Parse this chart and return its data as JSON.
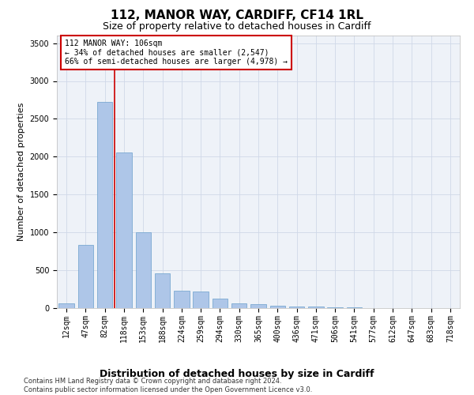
{
  "title1": "112, MANOR WAY, CARDIFF, CF14 1RL",
  "title2": "Size of property relative to detached houses in Cardiff",
  "xlabel": "Distribution of detached houses by size in Cardiff",
  "ylabel": "Number of detached properties",
  "categories": [
    "12sqm",
    "47sqm",
    "82sqm",
    "118sqm",
    "153sqm",
    "188sqm",
    "224sqm",
    "259sqm",
    "294sqm",
    "330sqm",
    "365sqm",
    "400sqm",
    "436sqm",
    "471sqm",
    "506sqm",
    "541sqm",
    "577sqm",
    "612sqm",
    "647sqm",
    "683sqm",
    "718sqm"
  ],
  "values": [
    65,
    840,
    2720,
    2060,
    1000,
    455,
    225,
    220,
    130,
    60,
    50,
    35,
    25,
    20,
    10,
    8,
    5,
    5,
    3,
    2,
    2
  ],
  "bar_color": "#aec6e8",
  "bar_edge_color": "#6aa0cc",
  "grid_color": "#d0d8e8",
  "bg_color": "#eef2f8",
  "vline_color": "#cc0000",
  "vline_x_idx": 2.5,
  "annotation_text": "112 MANOR WAY: 106sqm\n← 34% of detached houses are smaller (2,547)\n66% of semi-detached houses are larger (4,978) →",
  "annotation_box_color": "#cc0000",
  "ylim": [
    0,
    3600
  ],
  "yticks": [
    0,
    500,
    1000,
    1500,
    2000,
    2500,
    3000,
    3500
  ],
  "footnote": "Contains HM Land Registry data © Crown copyright and database right 2024.\nContains public sector information licensed under the Open Government Licence v3.0.",
  "title1_fontsize": 11,
  "title2_fontsize": 9,
  "xlabel_fontsize": 9,
  "ylabel_fontsize": 8,
  "tick_fontsize": 7,
  "footnote_fontsize": 6,
  "ann_fontsize": 7
}
